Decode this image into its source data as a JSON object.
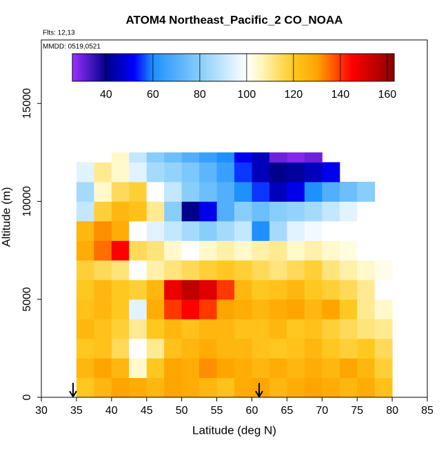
{
  "chart_data": {
    "type": "heatmap",
    "title": "ATOM4 Northeast_Pacific_2 CO_NOAA",
    "annotations": [
      "Flts: 12,13",
      "MMDD: 0519,0521"
    ],
    "xlabel": "Latitude (deg N)",
    "ylabel": "Altitude (m)",
    "xlim": [
      30,
      85
    ],
    "xticks": [
      30,
      35,
      40,
      45,
      50,
      55,
      60,
      65,
      70,
      75,
      80,
      85
    ],
    "ylim": [
      0,
      18240
    ],
    "yticks": [
      0,
      5000,
      10000,
      15000
    ],
    "xbins": [
      35,
      37.5,
      40,
      42.5,
      45,
      47.5,
      50,
      52.5,
      55,
      57.5,
      60,
      62.5,
      65,
      67.5,
      70,
      72.5,
      75,
      77.5,
      80,
      82.5
    ],
    "ybins": [
      0,
      1000,
      2000,
      3000,
      4000,
      5000,
      6000,
      7000,
      8000,
      9000,
      10000,
      11000,
      12000,
      12500
    ],
    "values": [
      [
        120,
        125,
        130,
        128,
        125,
        130,
        128,
        125,
        122,
        128,
        130,
        125,
        128,
        130,
        128,
        125,
        128,
        122,
        null
      ],
      [
        125,
        130,
        125,
        105,
        120,
        130,
        128,
        132,
        130,
        128,
        125,
        128,
        125,
        128,
        125,
        130,
        125,
        118,
        null
      ],
      [
        120,
        122,
        115,
        100,
        110,
        122,
        125,
        128,
        125,
        125,
        122,
        120,
        122,
        125,
        120,
        118,
        120,
        115,
        null
      ],
      [
        125,
        122,
        118,
        110,
        120,
        125,
        122,
        125,
        125,
        122,
        122,
        125,
        120,
        122,
        118,
        115,
        112,
        110,
        null
      ],
      [
        122,
        125,
        120,
        95,
        128,
        140,
        145,
        140,
        130,
        128,
        125,
        128,
        130,
        125,
        130,
        120,
        110,
        105,
        null
      ],
      [
        120,
        125,
        120,
        118,
        125,
        148,
        155,
        150,
        140,
        125,
        120,
        122,
        125,
        120,
        118,
        115,
        110,
        100,
        null
      ],
      [
        118,
        115,
        112,
        100,
        108,
        112,
        115,
        118,
        120,
        118,
        115,
        112,
        115,
        118,
        112,
        108,
        105,
        102,
        null
      ],
      [
        128,
        135,
        145,
        115,
        112,
        105,
        100,
        105,
        108,
        105,
        108,
        110,
        105,
        108,
        105,
        103,
        100,
        100,
        null
      ],
      [
        125,
        132,
        128,
        100,
        95,
        90,
        85,
        80,
        85,
        90,
        60,
        85,
        95,
        98,
        100,
        100,
        100,
        100,
        100
      ],
      [
        90,
        118,
        125,
        122,
        110,
        80,
        40,
        50,
        70,
        80,
        75,
        80,
        82,
        85,
        90,
        95,
        100,
        100,
        100
      ],
      [
        85,
        105,
        115,
        118,
        100,
        90,
        80,
        75,
        70,
        60,
        55,
        45,
        50,
        60,
        70,
        75,
        80,
        null,
        null
      ],
      [
        95,
        110,
        105,
        95,
        85,
        82,
        78,
        72,
        65,
        55,
        45,
        40,
        42,
        45,
        50,
        null,
        null,
        null,
        null
      ],
      [
        null,
        100,
        105,
        90,
        80,
        75,
        70,
        65,
        60,
        50,
        45,
        30,
        28,
        30,
        null,
        null,
        null,
        null,
        null
      ]
    ],
    "clim": [
      25.6,
      163
    ],
    "colorbar_ticks": [
      40,
      60,
      80,
      100,
      120,
      140,
      160
    ],
    "colorscale": [
      {
        "value": 25.6,
        "color": "#9b30ff"
      },
      {
        "value": 40,
        "color": "#00008b"
      },
      {
        "value": 52,
        "color": "#0000ff"
      },
      {
        "value": 60,
        "color": "#1e90ff"
      },
      {
        "value": 80,
        "color": "#87cefa"
      },
      {
        "value": 100,
        "color": "#ffffff"
      },
      {
        "value": 106,
        "color": "#fff8c0"
      },
      {
        "value": 120,
        "color": "#ffc820"
      },
      {
        "value": 130,
        "color": "#ffa500"
      },
      {
        "value": 145,
        "color": "#ff0000"
      },
      {
        "value": 163,
        "color": "#8b0000"
      }
    ]
  }
}
